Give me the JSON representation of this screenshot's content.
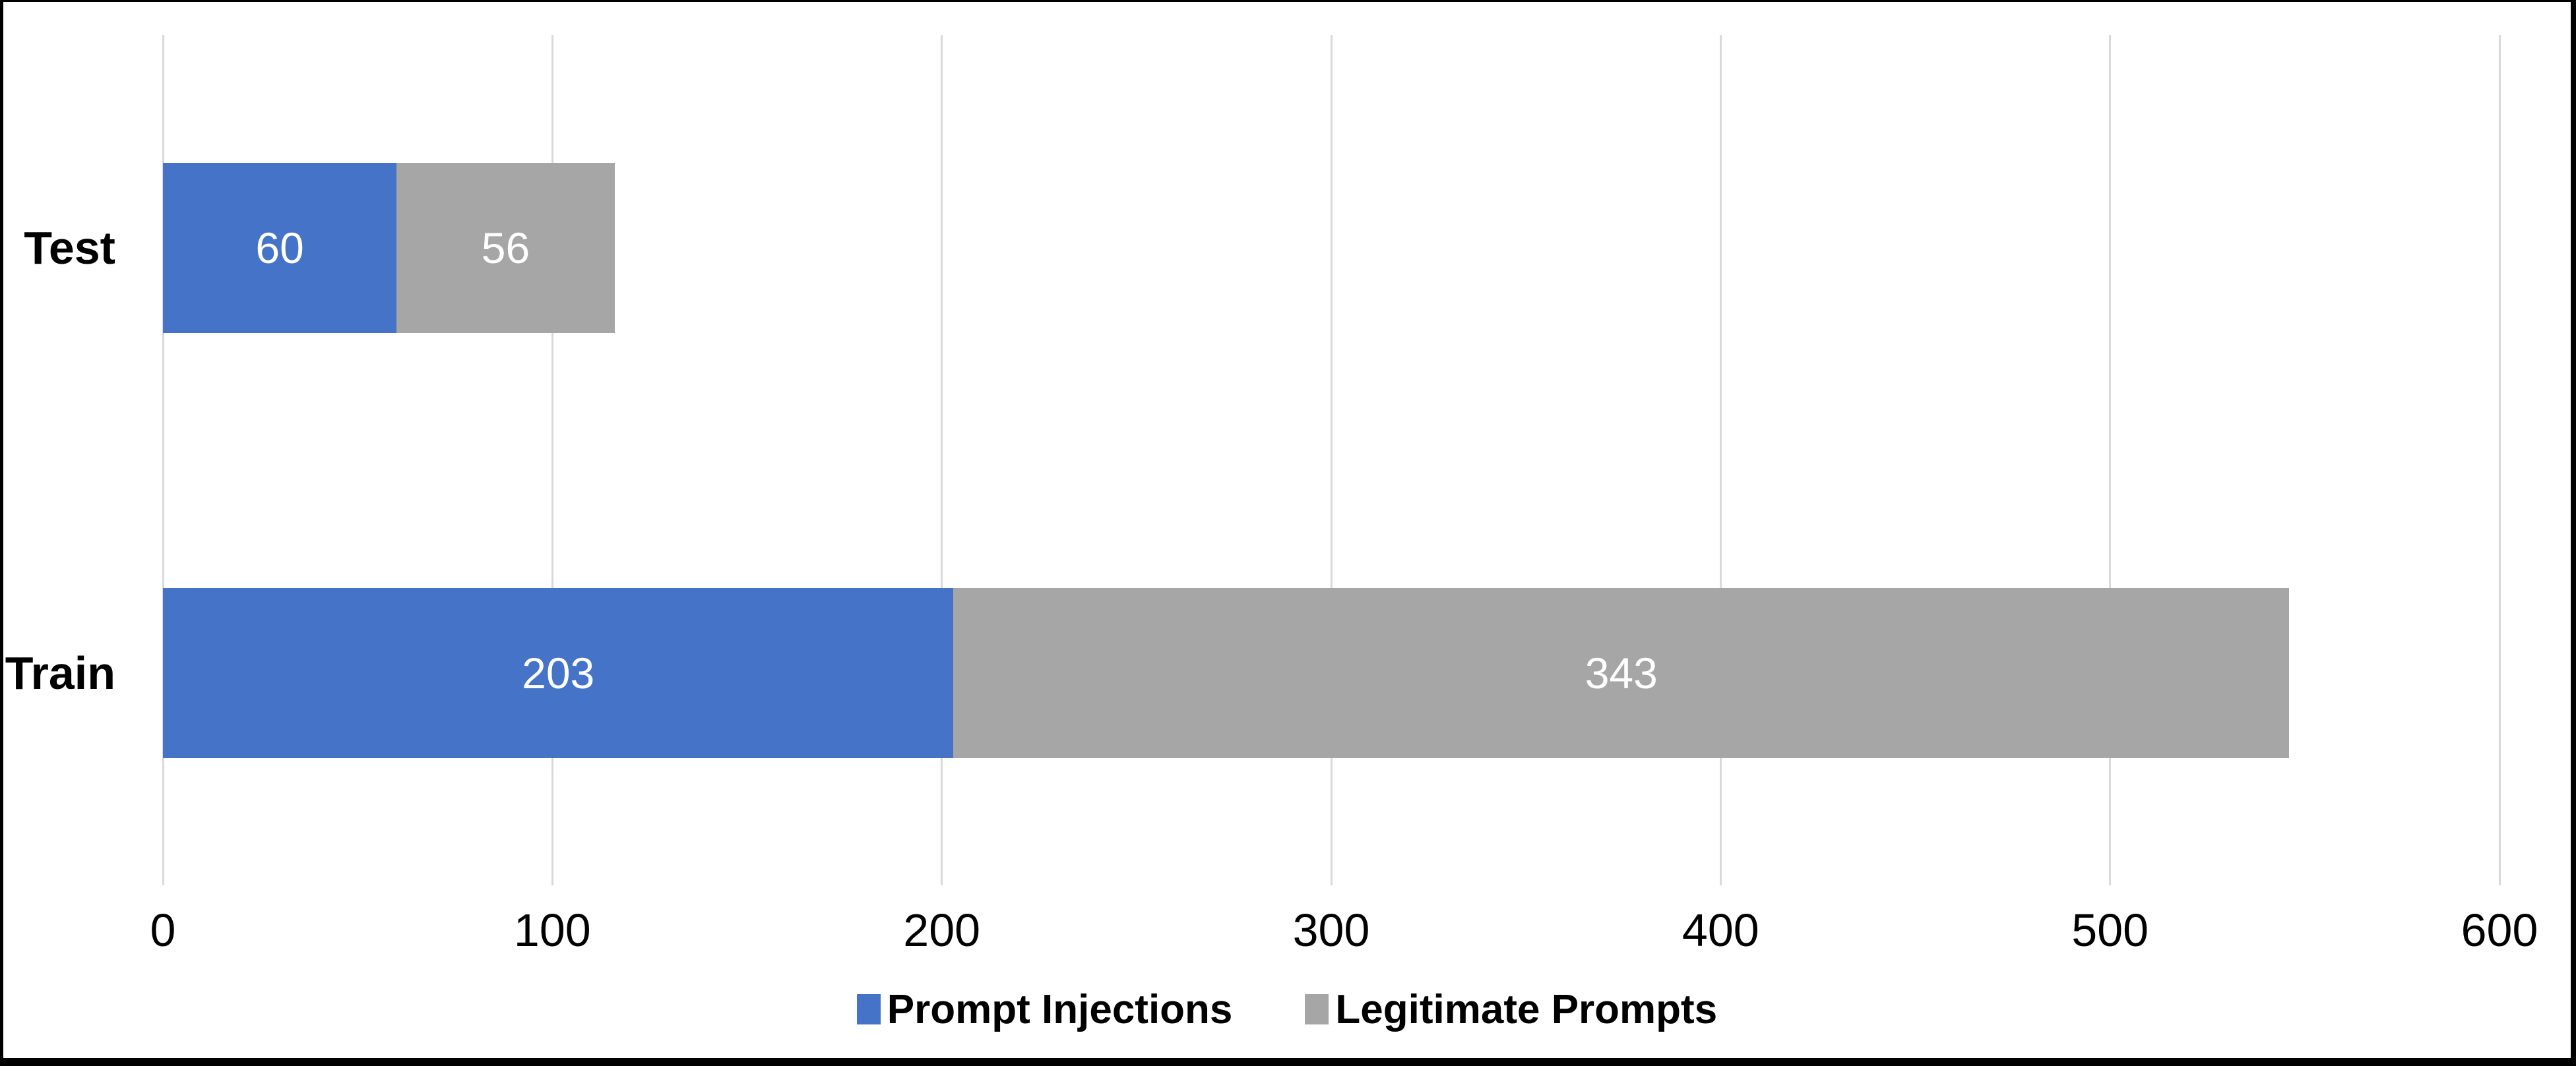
{
  "chart_data": {
    "type": "bar",
    "orientation": "horizontal",
    "stacked": true,
    "title": "",
    "xlabel": "",
    "ylabel": "",
    "categories": [
      "Test",
      "Train"
    ],
    "series": [
      {
        "name": "Prompt Injections",
        "color": "#4573C7",
        "values": [
          60,
          203
        ]
      },
      {
        "name": "Legitimate Prompts",
        "color": "#A6A6A6",
        "values": [
          56,
          343
        ]
      }
    ],
    "bar_totals": [
      116,
      546
    ],
    "data_labels_shown": true,
    "data_label_color": "#FFFFFF",
    "xlim": [
      0,
      600
    ],
    "xticks": [
      0,
      100,
      200,
      300,
      400,
      500,
      600
    ],
    "grid": "vertical",
    "gridline_color": "#D9D9D9",
    "legend_position": "bottom-center",
    "legend_entries": [
      "Prompt Injections",
      "Legitimate Prompts"
    ]
  },
  "frame": {
    "border_color": "#000000",
    "background_color": "#FFFFFF",
    "axis_text_color": "#000000"
  }
}
